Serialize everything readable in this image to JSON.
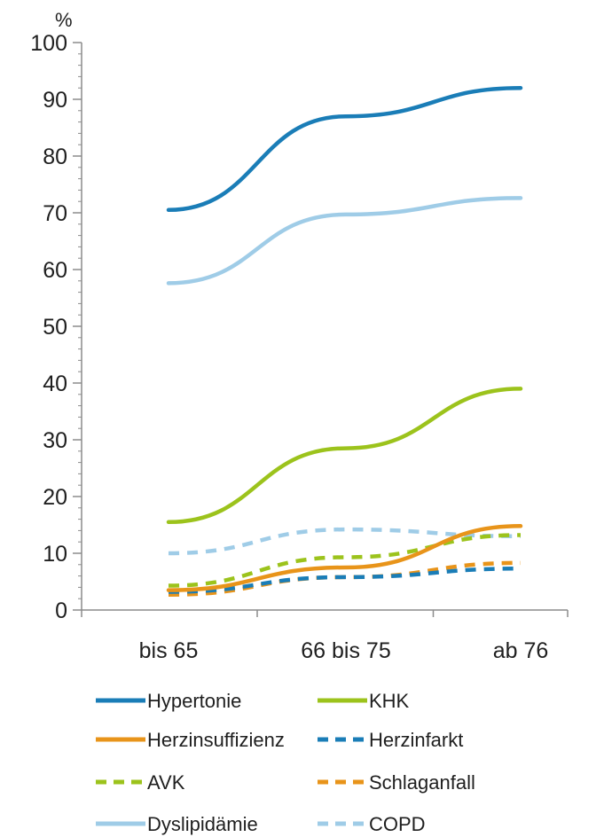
{
  "chart_data": {
    "type": "line",
    "ylabel": "%",
    "ylim": [
      0,
      100
    ],
    "yticks": [
      0,
      10,
      20,
      30,
      40,
      50,
      60,
      70,
      80,
      90,
      100
    ],
    "categories": [
      "bis 65",
      "66 bis 75",
      "ab 76"
    ],
    "grid": false,
    "legend_position": "bottom",
    "series": [
      {
        "name": "Hypertonie",
        "values": [
          70.5,
          87,
          92
        ],
        "color": "#1a7db7",
        "dashed": false
      },
      {
        "name": "KHK",
        "values": [
          15.5,
          28.5,
          39
        ],
        "color": "#9cc31c",
        "dashed": false
      },
      {
        "name": "Herzinsuffizienz",
        "values": [
          3.5,
          7.5,
          14.8
        ],
        "color": "#e8941a",
        "dashed": false
      },
      {
        "name": "Herzinfarkt",
        "values": [
          3.2,
          5.8,
          7.3
        ],
        "color": "#1a7db7",
        "dashed": true
      },
      {
        "name": "AVK",
        "values": [
          4.3,
          9.3,
          13.2
        ],
        "color": "#9cc31c",
        "dashed": true
      },
      {
        "name": "Schlaganfall",
        "values": [
          2.7,
          5.8,
          8.3
        ],
        "color": "#e8941a",
        "dashed": true
      },
      {
        "name": "Dyslipidämie",
        "values": [
          57.6,
          69.7,
          72.6
        ],
        "color": "#9fcce7",
        "dashed": false
      },
      {
        "name": "COPD",
        "values": [
          10,
          14.2,
          13
        ],
        "color": "#9fcce7",
        "dashed": true
      }
    ]
  }
}
